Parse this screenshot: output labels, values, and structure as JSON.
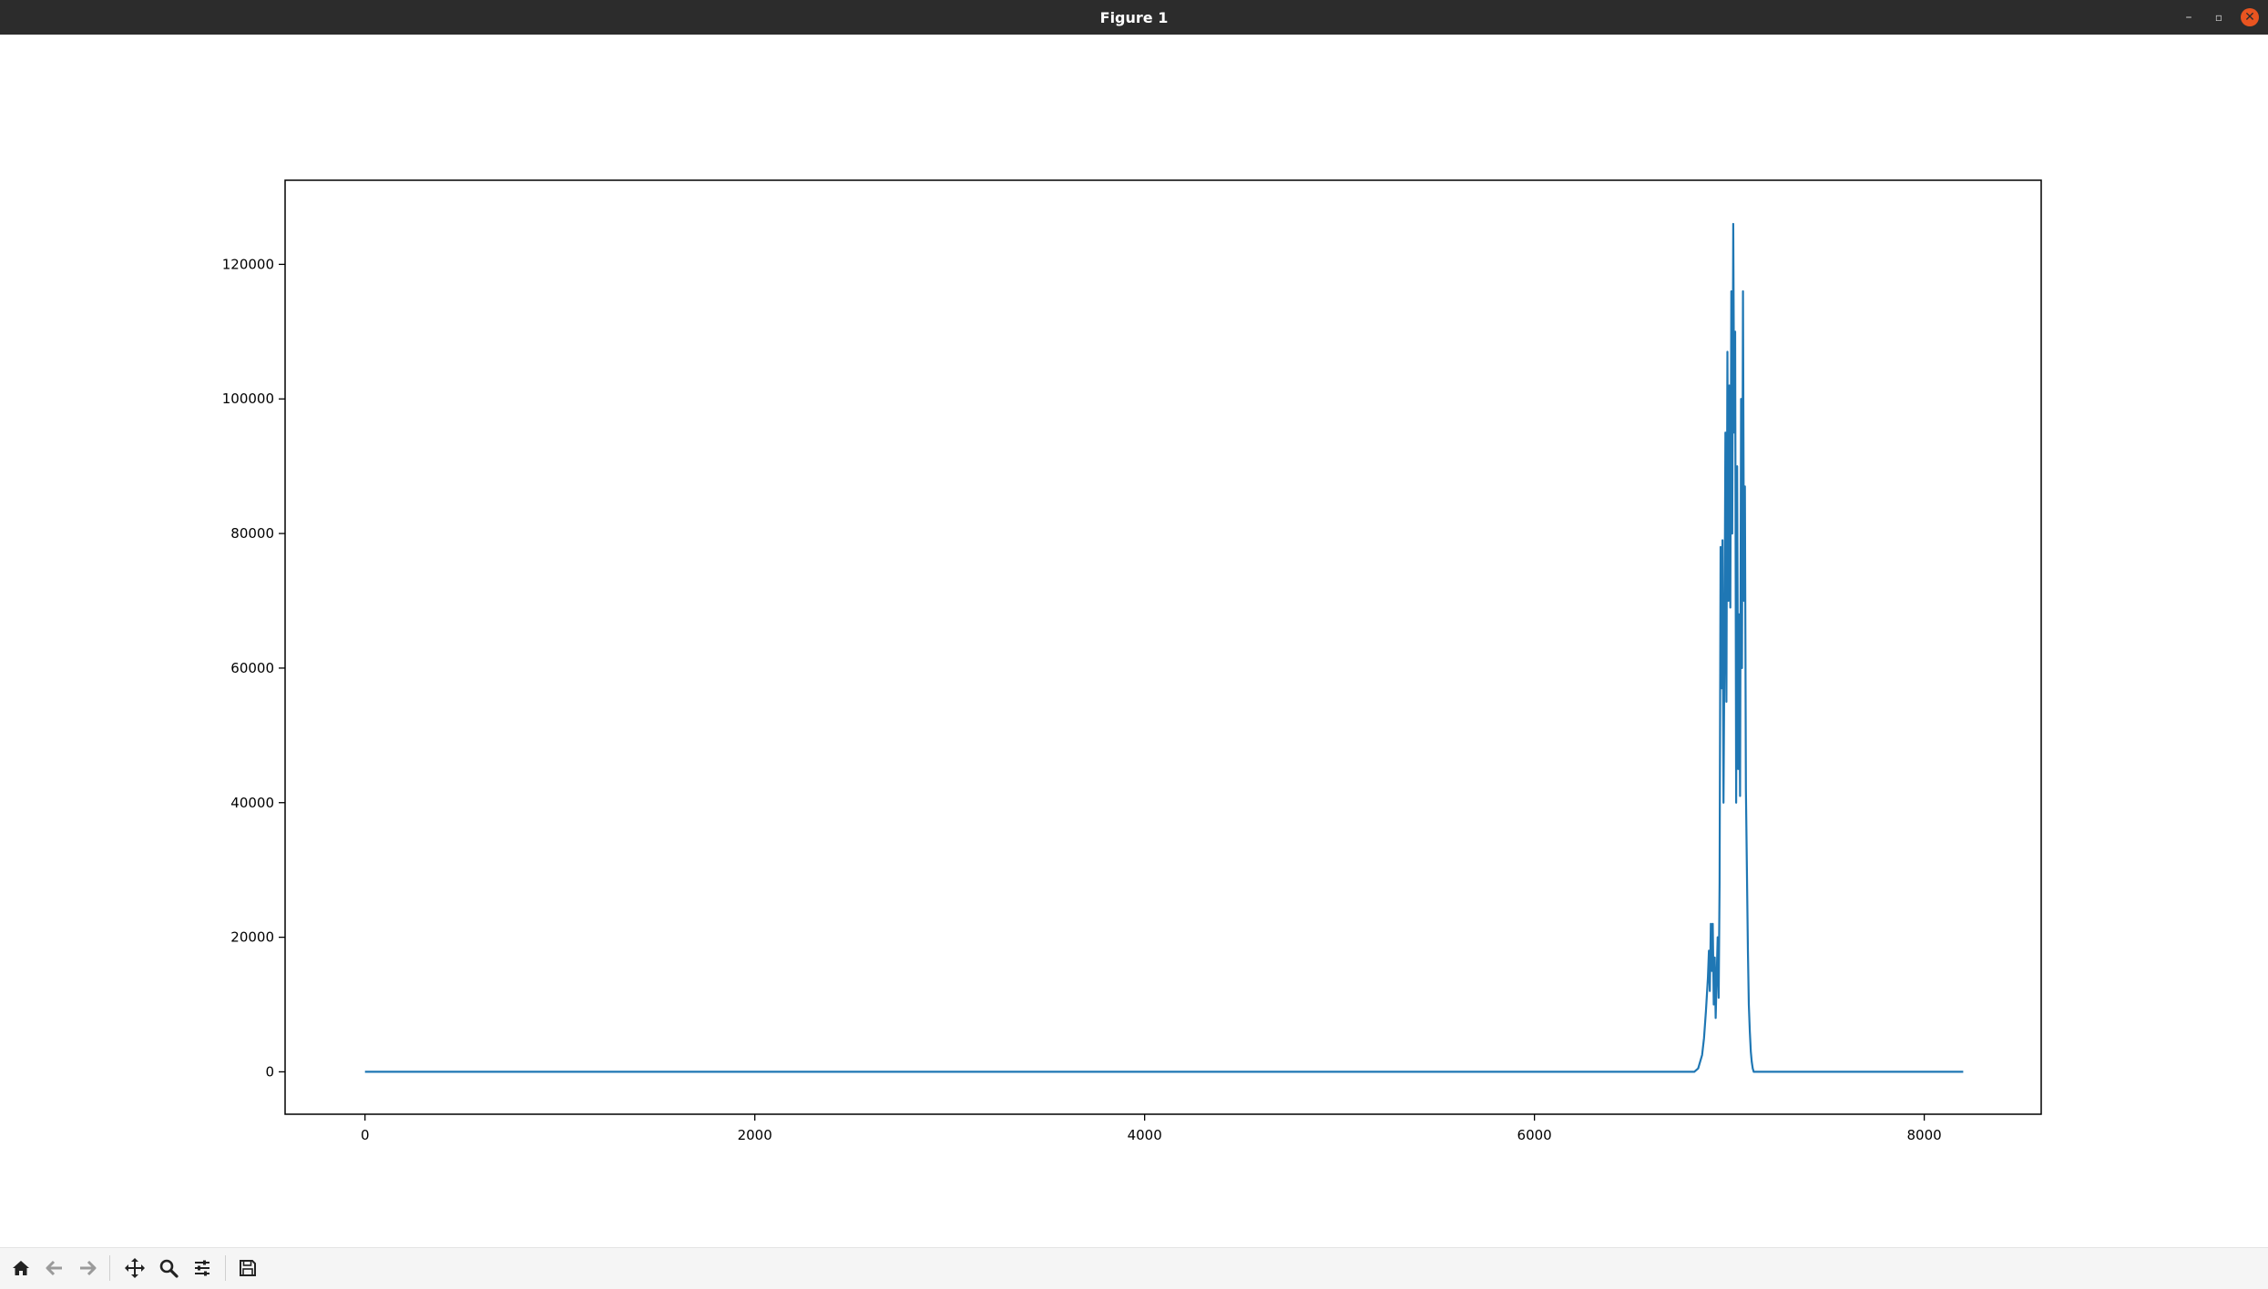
{
  "window": {
    "title": "Figure 1",
    "controls": {
      "minimize": "–",
      "maximize": "▫",
      "close": "✕"
    }
  },
  "toolbar": {
    "items": [
      {
        "name": "home-icon",
        "tooltip": "Reset original view"
      },
      {
        "name": "back-icon",
        "tooltip": "Back to previous view"
      },
      {
        "name": "forward-icon",
        "tooltip": "Forward to next view"
      },
      {
        "name": "pan-icon",
        "tooltip": "Pan axes"
      },
      {
        "name": "zoom-icon",
        "tooltip": "Zoom to rectangle"
      },
      {
        "name": "configure-subplots-icon",
        "tooltip": "Configure subplots"
      },
      {
        "name": "save-icon",
        "tooltip": "Save the figure"
      }
    ]
  },
  "colors": {
    "line": "#1f77b4",
    "titlebar": "#2c2c2c",
    "close_button": "#e95420",
    "toolbar_bg": "#f5f5f5"
  },
  "chart_data": {
    "type": "line",
    "title": "",
    "xlabel": "",
    "ylabel": "",
    "xlim": [
      -410,
      8600
    ],
    "ylim": [
      -6300,
      132500
    ],
    "xticks": [
      0,
      2000,
      4000,
      6000,
      8000
    ],
    "yticks": [
      0,
      20000,
      40000,
      60000,
      80000,
      100000,
      120000
    ],
    "xtick_labels": [
      "0",
      "2000",
      "4000",
      "6000",
      "8000"
    ],
    "ytick_labels": [
      "0",
      "20000",
      "40000",
      "60000",
      "80000",
      "100000",
      "120000"
    ],
    "grid": false,
    "legend": "none",
    "series": [
      {
        "x": [
          0,
          6820,
          6840,
          6860,
          6870,
          6880,
          6890,
          6895,
          6900,
          6905,
          6910,
          6915,
          6920,
          6925,
          6930,
          6935,
          6940,
          6945,
          6950,
          6955,
          6960,
          6965,
          6970,
          6975,
          6980,
          6985,
          6990,
          6995,
          7000,
          7005,
          7010,
          7015,
          7020,
          7025,
          7030,
          7035,
          7040,
          7045,
          7050,
          7055,
          7060,
          7065,
          7070,
          7075,
          7080,
          7085,
          7090,
          7095,
          7100,
          7105,
          7110,
          7115,
          7120,
          7125,
          7130,
          7135,
          7140,
          7150,
          7160,
          7170,
          7180,
          7190,
          7200,
          7215,
          7240,
          8200
        ],
        "y": [
          0,
          0,
          500,
          2500,
          5000,
          9000,
          14000,
          18000,
          12000,
          22000,
          15000,
          22000,
          10000,
          17000,
          8000,
          14000,
          20000,
          11000,
          28000,
          78000,
          57000,
          79000,
          40000,
          64000,
          95000,
          55000,
          107000,
          70000,
          102000,
          69000,
          116000,
          80000,
          126000,
          95000,
          110000,
          40000,
          90000,
          45000,
          68000,
          41000,
          100000,
          60000,
          116000,
          70000,
          87000,
          42000,
          30000,
          18000,
          10000,
          6000,
          3000,
          1500,
          500,
          0,
          0,
          0,
          0,
          0,
          0,
          0,
          0,
          0,
          0,
          0,
          0,
          0
        ]
      }
    ]
  }
}
